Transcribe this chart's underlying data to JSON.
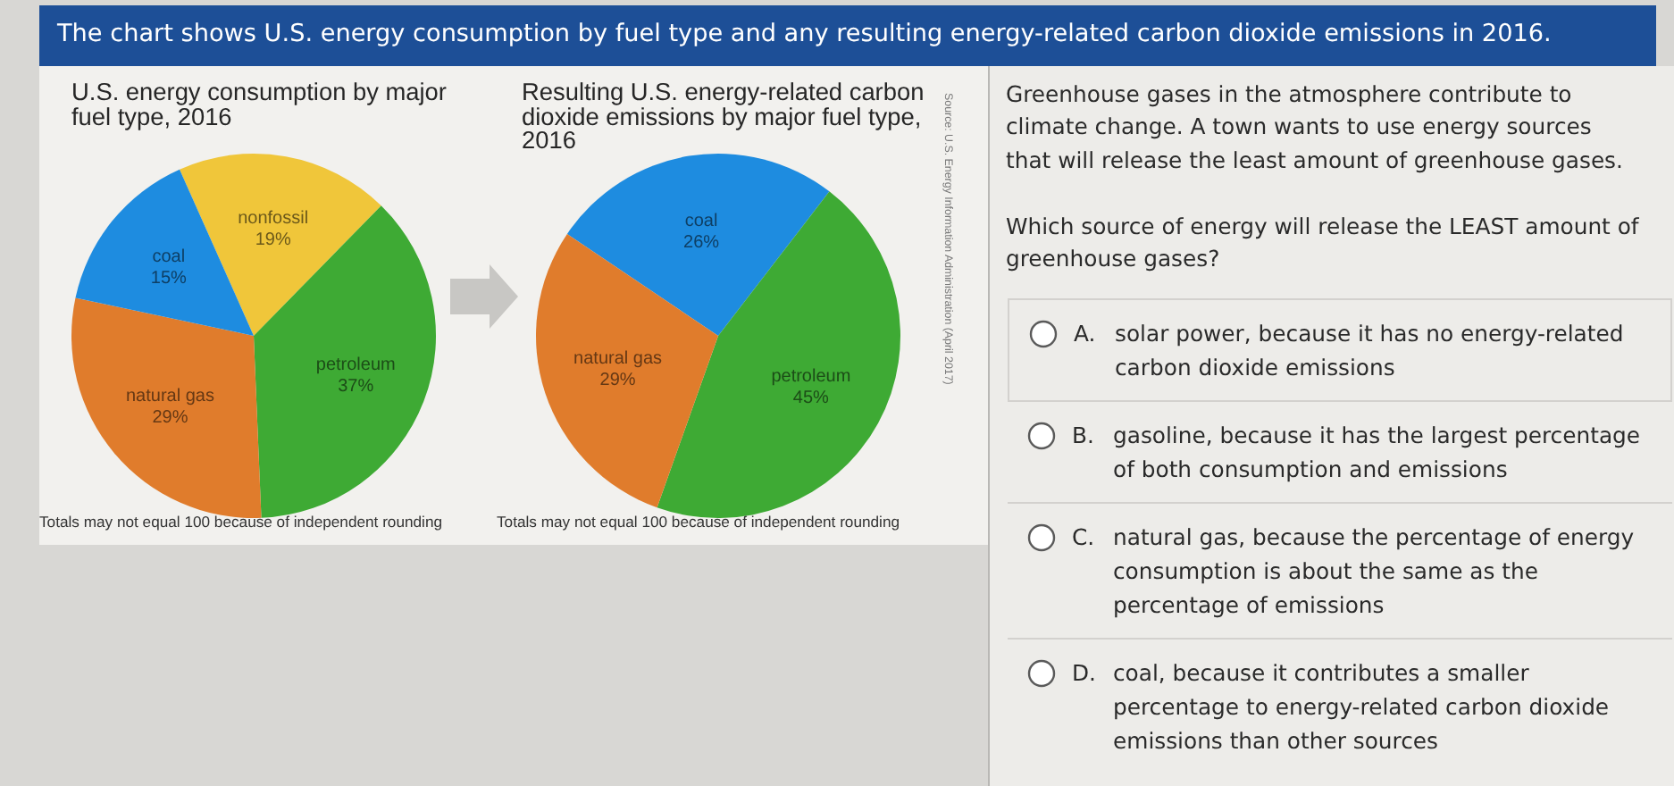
{
  "chart_data": [
    {
      "type": "other",
      "title": "The chart shows U.S. energy consumption by fuel type and any resulting energy-related carbon dioxide emissions in 2016."
    },
    {
      "type": "pie",
      "title": "U.S. energy consumption by major fuel type, 2016",
      "categories": [
        "nonfossil",
        "petroleum",
        "natural gas",
        "coal"
      ],
      "values": [
        19,
        37,
        29,
        15
      ],
      "colors": [
        "#f0c63a",
        "#3eaa34",
        "#e07c2c",
        "#1e8ce0"
      ],
      "value_labels": [
        "19%",
        "37%",
        "29%",
        "15%"
      ],
      "annotations": [
        "Totals may not equal 100 because of independent rounding"
      ]
    },
    {
      "type": "pie",
      "title": "Resulting U.S. energy-related carbon dioxide emissions by major fuel type, 2016",
      "categories": [
        "coal",
        "petroleum",
        "natural gas"
      ],
      "values": [
        26,
        45,
        29
      ],
      "colors": [
        "#1e8ce0",
        "#3eaa34",
        "#e07c2c"
      ],
      "value_labels": [
        "26%",
        "45%",
        "29%"
      ],
      "annotations": [
        "Totals may not equal 100 because of independent rounding",
        "Source: U.S. Energy Information Administration (April 2017)"
      ]
    },
    {
      "type": "other",
      "subtitle": "Greenhouse gases in the atmosphere contribute to climate change. A town wants to use energy sources that will release the least amount of greenhouse gases.",
      "title": "Which source of energy will release the LEAST amount of greenhouse gases?",
      "annotations": [
        "A. solar power, because it has no energy-related carbon dioxide emissions",
        "B. gasoline, because it has the largest percentage of both consumption and emissions",
        "C. natural gas, because the percentage of energy consumption is about the same as the percentage of emissions",
        "D. coal, because it contributes a smaller percentage to energy-related carbon dioxide emissions than other sources"
      ]
    }
  ]
}
